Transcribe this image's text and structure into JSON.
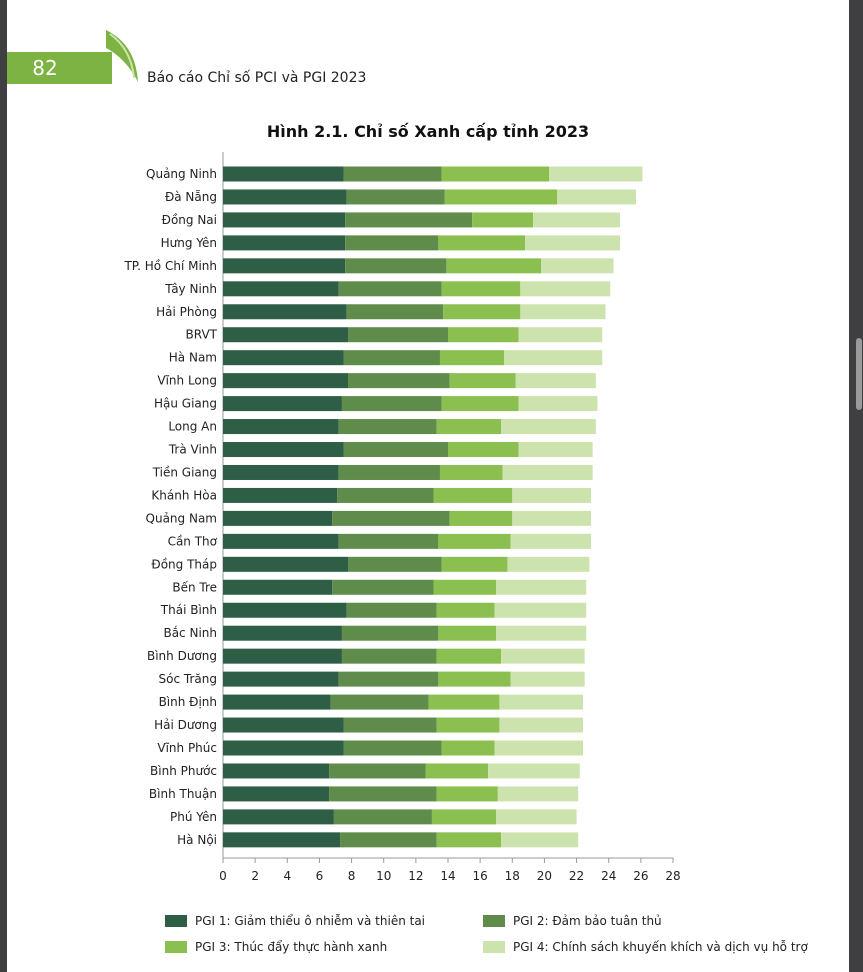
{
  "header": {
    "page_number": "82",
    "report_title": "Báo cáo Chỉ số PCI và PGI 2023"
  },
  "chart_data": {
    "type": "bar",
    "orientation": "horizontal",
    "stacked": true,
    "title": "Hình 2.1. Chỉ số Xanh cấp tỉnh 2023",
    "xlim": [
      0,
      28
    ],
    "xticks": [
      0,
      2,
      4,
      6,
      8,
      10,
      12,
      14,
      16,
      18,
      20,
      22,
      24,
      26,
      28
    ],
    "grid": false,
    "legend_position": "bottom",
    "categories": [
      "Quảng Ninh",
      "Đà Nẵng",
      "Đồng Nai",
      "Hưng Yên",
      "TP. Hồ Chí Minh",
      "Tây Ninh",
      "Hải Phòng",
      "BRVT",
      "Hà Nam",
      "Vĩnh Long",
      "Hậu Giang",
      "Long An",
      "Trà Vinh",
      "Tiền Giang",
      "Khánh Hòa",
      "Quảng Nam",
      "Cần Thơ",
      "Đồng Tháp",
      "Bến Tre",
      "Thái Bình",
      "Bắc Ninh",
      "Bình Dương",
      "Sóc Trăng",
      "Bình Định",
      "Hải Dương",
      "Vĩnh Phúc",
      "Bình Phước",
      "Bình Thuận",
      "Phú Yên",
      "Hà Nội"
    ],
    "series": [
      {
        "name": "PGI 1: Giảm thiểu ô nhiễm và thiên tai",
        "color": "#2e5e45",
        "values": [
          7.5,
          7.7,
          7.6,
          7.6,
          7.6,
          7.2,
          7.7,
          7.8,
          7.5,
          7.8,
          7.4,
          7.2,
          7.5,
          7.2,
          7.1,
          6.8,
          7.2,
          7.8,
          6.8,
          7.7,
          7.4,
          7.4,
          7.2,
          6.7,
          7.5,
          7.5,
          6.6,
          6.6,
          6.9,
          7.3
        ]
      },
      {
        "name": "PGI 2: Đảm bảo tuân thủ",
        "color": "#5f8c4a",
        "values": [
          6.1,
          6.1,
          7.9,
          5.8,
          6.3,
          6.4,
          6.0,
          6.2,
          6.0,
          6.3,
          6.2,
          6.1,
          6.5,
          6.3,
          6.0,
          7.3,
          6.2,
          5.8,
          6.3,
          5.6,
          6.0,
          5.9,
          6.2,
          6.1,
          5.8,
          6.1,
          6.0,
          6.7,
          6.1,
          6.0
        ]
      },
      {
        "name": "PGI 3: Thúc đẩy thực hành xanh",
        "color": "#8bbf4f",
        "values": [
          6.7,
          7.0,
          3.8,
          5.4,
          5.9,
          4.9,
          4.8,
          4.4,
          4.0,
          4.1,
          4.8,
          4.0,
          4.4,
          3.9,
          4.9,
          3.9,
          4.5,
          4.1,
          3.9,
          3.6,
          3.6,
          4.0,
          4.5,
          4.4,
          3.9,
          3.3,
          3.9,
          3.8,
          4.0,
          4.0
        ]
      },
      {
        "name": "PGI 4: Chính sách khuyến khích và dịch vụ hỗ trợ",
        "color": "#cde3ae",
        "values": [
          5.8,
          4.9,
          5.4,
          5.9,
          4.5,
          5.6,
          5.3,
          5.2,
          6.1,
          5.0,
          4.9,
          5.9,
          4.6,
          5.6,
          4.9,
          4.9,
          5.0,
          5.1,
          5.6,
          5.7,
          5.6,
          5.2,
          4.6,
          5.2,
          5.2,
          5.5,
          5.7,
          5.0,
          5.0,
          4.8
        ]
      }
    ]
  }
}
